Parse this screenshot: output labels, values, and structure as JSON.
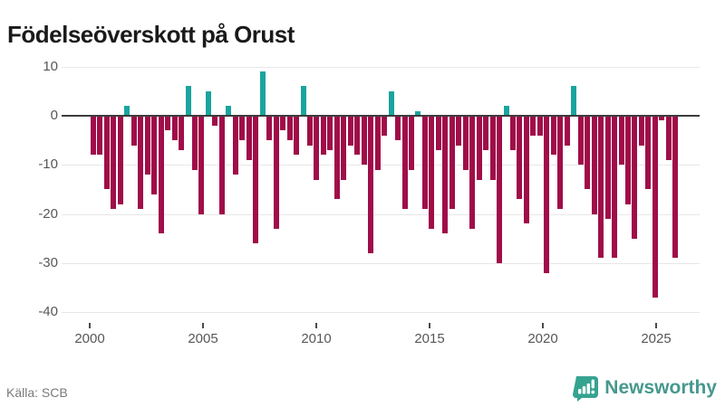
{
  "title": "Födelseöverskott på Orust",
  "source": "Källa: SCB",
  "branding": {
    "name": "Newsworthy",
    "icon": "newsworthy-speech-bubble-chart-icon"
  },
  "colors": {
    "negative_bar": "#a00d49",
    "positive_bar": "#1aa49f",
    "zero_line": "#3d3d3d",
    "gridline": "#e7e7e7",
    "axis_text": "#575757",
    "title_text": "#1a1a1a",
    "source_text": "#7a7a7a",
    "brand": "#46988d",
    "brand_icon": "#35a391"
  },
  "chart_data": {
    "type": "bar",
    "title": "Födelseöverskott på Orust",
    "xlabel": "",
    "ylabel": "",
    "x_tick_labels": [
      "2000",
      "2005",
      "2010",
      "2015",
      "2020",
      "2025"
    ],
    "x_tick_years": [
      2000,
      2005,
      2010,
      2015,
      2020,
      2025
    ],
    "y_tick_labels": [
      "10",
      "0",
      "-10",
      "-20",
      "-30",
      "-40"
    ],
    "y_ticks": [
      10,
      0,
      -10,
      -20,
      -30,
      -40
    ],
    "ylim": [
      -40,
      10
    ],
    "grid": true,
    "legend": false,
    "series_start_year": 2000.1,
    "series_step_years": 0.3,
    "values": [
      -8,
      -8,
      -15,
      -19,
      -18,
      2,
      -6,
      -19,
      -12,
      -16,
      -24,
      -3,
      -5,
      -7,
      6,
      -11,
      -20,
      5,
      -2,
      -20,
      2,
      -12,
      -5,
      -9,
      -26,
      9,
      -5,
      -23,
      -3,
      -5,
      -8,
      6,
      -6,
      -13,
      -8,
      -7,
      -17,
      -13,
      -6,
      -8,
      -10,
      -28,
      -11,
      -4,
      5,
      -5,
      -19,
      -11,
      1,
      -19,
      -23,
      -7,
      -24,
      -19,
      -6,
      -11,
      -23,
      -13,
      -7,
      -13,
      -30,
      2,
      -7,
      -17,
      -22,
      -4,
      -4,
      -32,
      -8,
      -19,
      -6,
      6,
      -10,
      -15,
      -20,
      -29,
      -21,
      -29,
      -10,
      -18,
      -25,
      -6,
      -15,
      -37,
      -1,
      -9,
      -29
    ]
  }
}
